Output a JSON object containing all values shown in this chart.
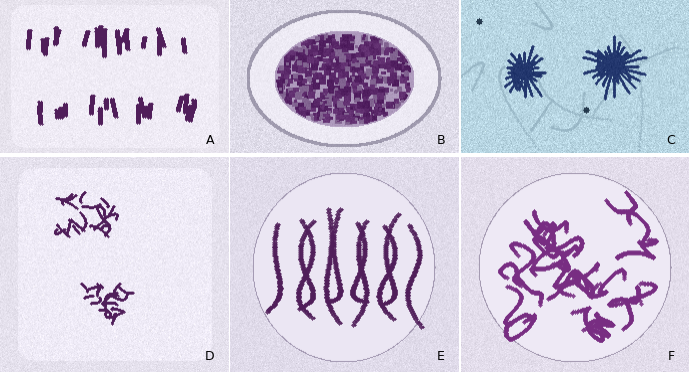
{
  "figure_width": 6.89,
  "figure_height": 3.72,
  "dpi": 100,
  "background_color": "#ffffff",
  "labels": [
    "A",
    "B",
    "C",
    "D",
    "E",
    "F"
  ],
  "label_fontsize": 9,
  "label_color": "#000000",
  "chrom_color_dark": [
    80,
    30,
    90
  ],
  "chrom_color_mid": [
    100,
    45,
    110
  ],
  "bg_lavender": [
    220,
    215,
    230
  ],
  "bg_pale": [
    235,
    230,
    240
  ],
  "bg_cell_light": [
    240,
    238,
    245
  ],
  "bg_blue": [
    180,
    210,
    225
  ],
  "nucleus_color": [
    200,
    185,
    215
  ]
}
